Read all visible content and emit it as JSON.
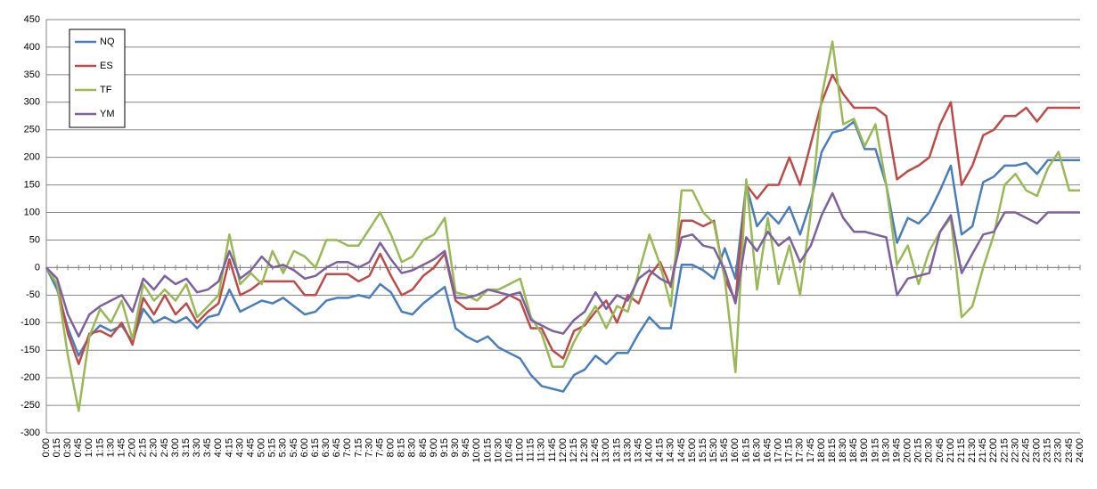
{
  "chart_data": {
    "type": "line",
    "categories": [
      "0:00",
      "0:15",
      "0:30",
      "0:45",
      "1:00",
      "1:15",
      "1:30",
      "1:45",
      "2:00",
      "2:15",
      "2:30",
      "2:45",
      "3:00",
      "3:15",
      "3:30",
      "3:45",
      "4:00",
      "4:15",
      "4:30",
      "4:45",
      "5:00",
      "5:15",
      "5:30",
      "5:45",
      "6:00",
      "6:15",
      "6:30",
      "6:45",
      "7:00",
      "7:15",
      "7:30",
      "7:45",
      "8:00",
      "8:15",
      "8:30",
      "8:45",
      "9:00",
      "9:15",
      "9:30",
      "9:45",
      "10:00",
      "10:15",
      "10:30",
      "10:45",
      "11:00",
      "11:15",
      "11:30",
      "11:45",
      "12:00",
      "12:15",
      "12:30",
      "12:45",
      "13:00",
      "13:15",
      "13:30",
      "13:45",
      "14:00",
      "14:15",
      "14:30",
      "14:45",
      "15:00",
      "15:15",
      "15:30",
      "15:45",
      "16:00",
      "16:15",
      "16:30",
      "16:45",
      "17:00",
      "17:15",
      "17:30",
      "17:45",
      "18:00",
      "18:15",
      "18:30",
      "18:45",
      "19:00",
      "19:15",
      "19:30",
      "19:45",
      "20:00",
      "20:15",
      "20:30",
      "20:45",
      "21:00",
      "21:15",
      "21:30",
      "21:45",
      "22:00",
      "22:15",
      "22:30",
      "22:45",
      "23:00",
      "23:15",
      "23:30",
      "23:45",
      "24:00"
    ],
    "series": [
      {
        "name": "NQ",
        "color": "#4a7ebb",
        "values": [
          0,
          -40,
          -110,
          -160,
          -125,
          -105,
          -115,
          -105,
          -135,
          -75,
          -100,
          -90,
          -100,
          -90,
          -110,
          -90,
          -85,
          -40,
          -80,
          -70,
          -60,
          -65,
          -55,
          -70,
          -85,
          -80,
          -60,
          -55,
          -55,
          -50,
          -55,
          -30,
          -45,
          -80,
          -85,
          -65,
          -50,
          -35,
          -110,
          -125,
          -135,
          -125,
          -145,
          -155,
          -165,
          -195,
          -215,
          -220,
          -225,
          -195,
          -185,
          -160,
          -175,
          -155,
          -155,
          -120,
          -90,
          -110,
          -110,
          5,
          5,
          -5,
          -20,
          35,
          -20,
          150,
          75,
          100,
          80,
          110,
          60,
          120,
          210,
          245,
          250,
          265,
          215,
          215,
          150,
          45,
          90,
          80,
          100,
          140,
          185,
          60,
          75,
          155,
          165,
          185,
          185,
          190,
          170,
          195,
          195,
          195,
          195
        ]
      },
      {
        "name": "ES",
        "color": "#be4b48",
        "values": [
          0,
          -30,
          -120,
          -175,
          -120,
          -115,
          -125,
          -100,
          -140,
          -55,
          -85,
          -50,
          -85,
          -65,
          -100,
          -80,
          -65,
          15,
          -50,
          -40,
          -25,
          -25,
          -25,
          -25,
          -50,
          -50,
          -12,
          -12,
          -12,
          -25,
          -15,
          25,
          -15,
          -50,
          -40,
          -15,
          0,
          25,
          -60,
          -75,
          -75,
          -75,
          -65,
          -50,
          -60,
          -110,
          -110,
          -150,
          -165,
          -115,
          -105,
          -80,
          -60,
          -100,
          -50,
          -65,
          -15,
          10,
          -35,
          85,
          85,
          75,
          85,
          -20,
          -60,
          150,
          125,
          150,
          150,
          200,
          150,
          225,
          300,
          350,
          315,
          290,
          290,
          290,
          275,
          160,
          175,
          185,
          200,
          260,
          300,
          150,
          185,
          240,
          250,
          275,
          275,
          290,
          265,
          290,
          290,
          290,
          290
        ]
      },
      {
        "name": "TF",
        "color": "#98b954",
        "values": [
          0,
          -30,
          -160,
          -260,
          -125,
          -75,
          -100,
          -60,
          -130,
          -30,
          -60,
          -40,
          -60,
          -30,
          -90,
          -70,
          -50,
          60,
          -30,
          -10,
          -30,
          30,
          -10,
          30,
          20,
          0,
          50,
          50,
          40,
          40,
          70,
          100,
          60,
          10,
          20,
          50,
          60,
          90,
          -45,
          -50,
          -60,
          -40,
          -40,
          -30,
          -20,
          -90,
          -120,
          -180,
          -180,
          -135,
          -100,
          -70,
          -110,
          -70,
          -80,
          -10,
          60,
          5,
          -70,
          140,
          140,
          100,
          80,
          -20,
          -190,
          160,
          -40,
          90,
          -30,
          40,
          -50,
          100,
          310,
          410,
          260,
          270,
          220,
          260,
          150,
          5,
          40,
          -30,
          30,
          65,
          90,
          -90,
          -70,
          0,
          60,
          150,
          170,
          140,
          130,
          180,
          210,
          140,
          140
        ]
      },
      {
        "name": "YM",
        "color": "#7d60a0",
        "values": [
          0,
          -20,
          -85,
          -125,
          -85,
          -70,
          -60,
          -50,
          -80,
          -20,
          -40,
          -15,
          -30,
          -20,
          -45,
          -40,
          -25,
          30,
          -20,
          -5,
          20,
          0,
          5,
          -5,
          -20,
          -15,
          0,
          10,
          10,
          0,
          10,
          45,
          15,
          -10,
          -5,
          5,
          15,
          30,
          -55,
          -55,
          -50,
          -40,
          -45,
          -50,
          -45,
          -95,
          -105,
          -115,
          -120,
          -95,
          -80,
          -45,
          -75,
          -50,
          -60,
          -20,
          -5,
          -20,
          -30,
          55,
          60,
          40,
          35,
          -5,
          -65,
          55,
          30,
          65,
          40,
          55,
          10,
          40,
          95,
          135,
          90,
          65,
          65,
          60,
          55,
          -50,
          -20,
          -15,
          -10,
          65,
          95,
          -10,
          25,
          60,
          65,
          100,
          100,
          90,
          80,
          100,
          100,
          100,
          100
        ]
      }
    ],
    "ylim": [
      -300,
      450
    ],
    "yticks": [
      -300,
      -250,
      -200,
      -150,
      -100,
      -50,
      0,
      50,
      100,
      150,
      200,
      250,
      300,
      350,
      400,
      450
    ],
    "grid": true,
    "legend": "top-left"
  }
}
